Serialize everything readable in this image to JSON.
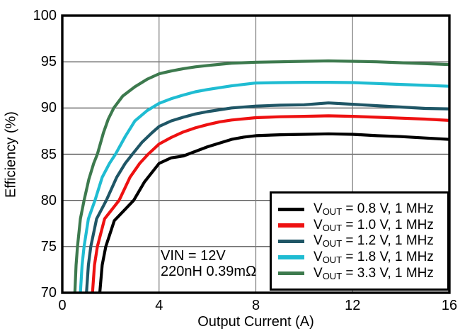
{
  "chart_data": {
    "type": "line",
    "title": "",
    "xlabel": "Output Current (A)",
    "ylabel": "Efficiency (%)",
    "xlim": [
      0,
      16
    ],
    "ylim": [
      70,
      100
    ],
    "xticks": [
      0,
      4,
      8,
      12,
      16
    ],
    "yticks": [
      70,
      75,
      80,
      85,
      90,
      95,
      100
    ],
    "grid": true,
    "grid_color_horizontal": "#3f3f3f",
    "grid_color_vertical": "#7a7a7a",
    "frame_color": "#000000",
    "legend_position": "lower right",
    "annotations": [
      "VIN = 12V",
      "220nH 0.39mΩ"
    ],
    "series": [
      {
        "id": "vout-0v8",
        "name": "VOUT = 0.8 V, 1 MHz",
        "legend": {
          "sym": "V",
          "sub": "OUT",
          "rest": " = 0.8 V, 1 MHz"
        },
        "color": "#000000",
        "points": [
          [
            1.55,
            70
          ],
          [
            1.65,
            73
          ],
          [
            1.8,
            75
          ],
          [
            2.15,
            77.8
          ],
          [
            2.95,
            80
          ],
          [
            3.4,
            82
          ],
          [
            4,
            84
          ],
          [
            4.5,
            84.6
          ],
          [
            5,
            84.8
          ],
          [
            5.5,
            85.3
          ],
          [
            6,
            85.8
          ],
          [
            6.5,
            86.2
          ],
          [
            7,
            86.6
          ],
          [
            7.5,
            86.85
          ],
          [
            8,
            87.0
          ],
          [
            9,
            87.1
          ],
          [
            10,
            87.15
          ],
          [
            11,
            87.2
          ],
          [
            12,
            87.15
          ],
          [
            13,
            87.0
          ],
          [
            14,
            86.9
          ],
          [
            15,
            86.75
          ],
          [
            16,
            86.6
          ]
        ]
      },
      {
        "id": "vout-1v0",
        "name": "VOUT = 1.0 V, 1 MHz",
        "legend": {
          "sym": "V",
          "sub": "OUT",
          "rest": " = 1.0 V, 1 MHz"
        },
        "color": "#ee1111",
        "points": [
          [
            1.25,
            70
          ],
          [
            1.33,
            73
          ],
          [
            1.45,
            75
          ],
          [
            1.75,
            78
          ],
          [
            2.35,
            80
          ],
          [
            2.8,
            82.5
          ],
          [
            3.2,
            84
          ],
          [
            3.55,
            85
          ],
          [
            4,
            86.1
          ],
          [
            4.5,
            86.8
          ],
          [
            5,
            87.4
          ],
          [
            5.5,
            87.85
          ],
          [
            6,
            88.2
          ],
          [
            6.5,
            88.5
          ],
          [
            7,
            88.7
          ],
          [
            8,
            88.95
          ],
          [
            9,
            89.05
          ],
          [
            10,
            89.1
          ],
          [
            11,
            89.15
          ],
          [
            12,
            89.1
          ],
          [
            13,
            89.0
          ],
          [
            14,
            88.9
          ],
          [
            15,
            88.8
          ],
          [
            16,
            88.65
          ]
        ]
      },
      {
        "id": "vout-1v2",
        "name": "VOUT = 1.2 V, 1 MHz",
        "legend": {
          "sym": "V",
          "sub": "OUT",
          "rest": " = 1.2 V, 1 MHz"
        },
        "color": "#1f5666",
        "points": [
          [
            1.0,
            70
          ],
          [
            1.08,
            73
          ],
          [
            1.18,
            75
          ],
          [
            1.42,
            78
          ],
          [
            1.82,
            80
          ],
          [
            2.25,
            82.5
          ],
          [
            2.6,
            84
          ],
          [
            2.9,
            85
          ],
          [
            3.3,
            86.3
          ],
          [
            3.7,
            87.3
          ],
          [
            4,
            88.0
          ],
          [
            4.5,
            88.6
          ],
          [
            5,
            89.0
          ],
          [
            5.5,
            89.35
          ],
          [
            6,
            89.6
          ],
          [
            7,
            90.0
          ],
          [
            8,
            90.2
          ],
          [
            9,
            90.3
          ],
          [
            10,
            90.35
          ],
          [
            11,
            90.55
          ],
          [
            12,
            90.4
          ],
          [
            13,
            90.25
          ],
          [
            14,
            90.1
          ],
          [
            15,
            89.95
          ],
          [
            16,
            89.9
          ]
        ]
      },
      {
        "id": "vout-1v8",
        "name": "VOUT = 1.8 V, 1 MHz",
        "legend": {
          "sym": "V",
          "sub": "OUT",
          "rest": " = 1.8 V, 1 MHz"
        },
        "color": "#1fbcd2",
        "points": [
          [
            0.75,
            70
          ],
          [
            0.82,
            73
          ],
          [
            0.9,
            75
          ],
          [
            1.08,
            78
          ],
          [
            1.35,
            80
          ],
          [
            1.65,
            82.5
          ],
          [
            1.95,
            84
          ],
          [
            2.2,
            85
          ],
          [
            2.6,
            86.9
          ],
          [
            3,
            88.6
          ],
          [
            3.5,
            89.7
          ],
          [
            4,
            90.5
          ],
          [
            4.5,
            91.0
          ],
          [
            5,
            91.4
          ],
          [
            5.5,
            91.75
          ],
          [
            6,
            92.0
          ],
          [
            7,
            92.4
          ],
          [
            8,
            92.7
          ],
          [
            9,
            92.75
          ],
          [
            10,
            92.78
          ],
          [
            11,
            92.78
          ],
          [
            12,
            92.75
          ],
          [
            13,
            92.65
          ],
          [
            14,
            92.55
          ],
          [
            15,
            92.45
          ],
          [
            16,
            92.35
          ]
        ]
      },
      {
        "id": "vout-3v3",
        "name": "VOUT = 3.3 V, 1 MHz",
        "legend": {
          "sym": "V",
          "sub": "OUT",
          "rest": " = 3.3 V, 1 MHz"
        },
        "color": "#3d7a4e",
        "points": [
          [
            0.52,
            70
          ],
          [
            0.57,
            73
          ],
          [
            0.63,
            75
          ],
          [
            0.75,
            78
          ],
          [
            0.9,
            80
          ],
          [
            1.1,
            82.3
          ],
          [
            1.3,
            84
          ],
          [
            1.45,
            85
          ],
          [
            1.7,
            87.3
          ],
          [
            1.9,
            88.8
          ],
          [
            2.13,
            90
          ],
          [
            2.5,
            91.3
          ],
          [
            3,
            92.3
          ],
          [
            3.5,
            93.1
          ],
          [
            4,
            93.7
          ],
          [
            4.5,
            94.0
          ],
          [
            5,
            94.25
          ],
          [
            5.5,
            94.45
          ],
          [
            6,
            94.6
          ],
          [
            7,
            94.85
          ],
          [
            8,
            94.95
          ],
          [
            9,
            95.0
          ],
          [
            10,
            95.05
          ],
          [
            11,
            95.1
          ],
          [
            12,
            95.05
          ],
          [
            13,
            95.0
          ],
          [
            14,
            94.9
          ],
          [
            15,
            94.8
          ],
          [
            16,
            94.7
          ]
        ]
      }
    ]
  }
}
